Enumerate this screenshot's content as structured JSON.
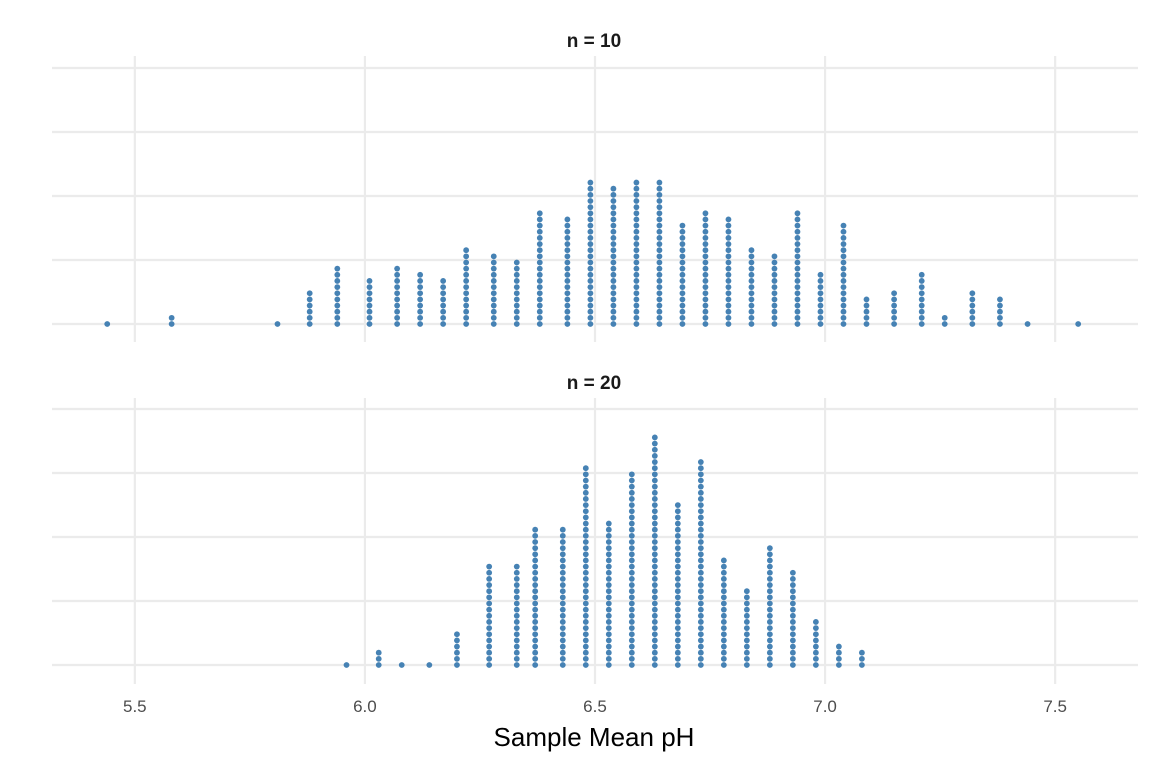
{
  "chart_data": {
    "type": "dotplot",
    "xlabel": "Sample Mean pH",
    "xlim": [
      5.32,
      7.68
    ],
    "x_ticks": [
      5.5,
      6.0,
      6.5,
      7.0,
      7.5
    ],
    "x_tick_labels": [
      "5.5",
      "6.0",
      "6.5",
      "7.0",
      "7.5"
    ],
    "dot_color": "#4682b4",
    "panels": [
      {
        "title": "n = 10",
        "bins": [
          {
            "x": 5.44,
            "count": 1
          },
          {
            "x": 5.58,
            "count": 2
          },
          {
            "x": 5.81,
            "count": 1
          },
          {
            "x": 5.88,
            "count": 6
          },
          {
            "x": 5.94,
            "count": 10
          },
          {
            "x": 6.01,
            "count": 8
          },
          {
            "x": 6.07,
            "count": 10
          },
          {
            "x": 6.12,
            "count": 9
          },
          {
            "x": 6.17,
            "count": 8
          },
          {
            "x": 6.22,
            "count": 13
          },
          {
            "x": 6.28,
            "count": 12
          },
          {
            "x": 6.33,
            "count": 11
          },
          {
            "x": 6.38,
            "count": 19
          },
          {
            "x": 6.44,
            "count": 18
          },
          {
            "x": 6.49,
            "count": 24
          },
          {
            "x": 6.54,
            "count": 23
          },
          {
            "x": 6.59,
            "count": 24
          },
          {
            "x": 6.64,
            "count": 24
          },
          {
            "x": 6.69,
            "count": 17
          },
          {
            "x": 6.74,
            "count": 19
          },
          {
            "x": 6.79,
            "count": 18
          },
          {
            "x": 6.84,
            "count": 13
          },
          {
            "x": 6.89,
            "count": 12
          },
          {
            "x": 6.94,
            "count": 19
          },
          {
            "x": 6.99,
            "count": 9
          },
          {
            "x": 7.04,
            "count": 17
          },
          {
            "x": 7.09,
            "count": 5
          },
          {
            "x": 7.15,
            "count": 6
          },
          {
            "x": 7.21,
            "count": 9
          },
          {
            "x": 7.26,
            "count": 2
          },
          {
            "x": 7.32,
            "count": 6
          },
          {
            "x": 7.38,
            "count": 5
          },
          {
            "x": 7.44,
            "count": 1
          },
          {
            "x": 7.55,
            "count": 1
          }
        ]
      },
      {
        "title": "n = 20",
        "bins": [
          {
            "x": 5.96,
            "count": 1
          },
          {
            "x": 6.03,
            "count": 3
          },
          {
            "x": 6.08,
            "count": 1
          },
          {
            "x": 6.14,
            "count": 1
          },
          {
            "x": 6.2,
            "count": 6
          },
          {
            "x": 6.27,
            "count": 17
          },
          {
            "x": 6.33,
            "count": 17
          },
          {
            "x": 6.37,
            "count": 23
          },
          {
            "x": 6.43,
            "count": 23
          },
          {
            "x": 6.48,
            "count": 33
          },
          {
            "x": 6.53,
            "count": 24
          },
          {
            "x": 6.58,
            "count": 32
          },
          {
            "x": 6.63,
            "count": 38
          },
          {
            "x": 6.68,
            "count": 27
          },
          {
            "x": 6.73,
            "count": 34
          },
          {
            "x": 6.78,
            "count": 18
          },
          {
            "x": 6.83,
            "count": 13
          },
          {
            "x": 6.88,
            "count": 20
          },
          {
            "x": 6.93,
            "count": 16
          },
          {
            "x": 6.98,
            "count": 8
          },
          {
            "x": 7.03,
            "count": 4
          },
          {
            "x": 7.08,
            "count": 3
          }
        ]
      }
    ]
  }
}
